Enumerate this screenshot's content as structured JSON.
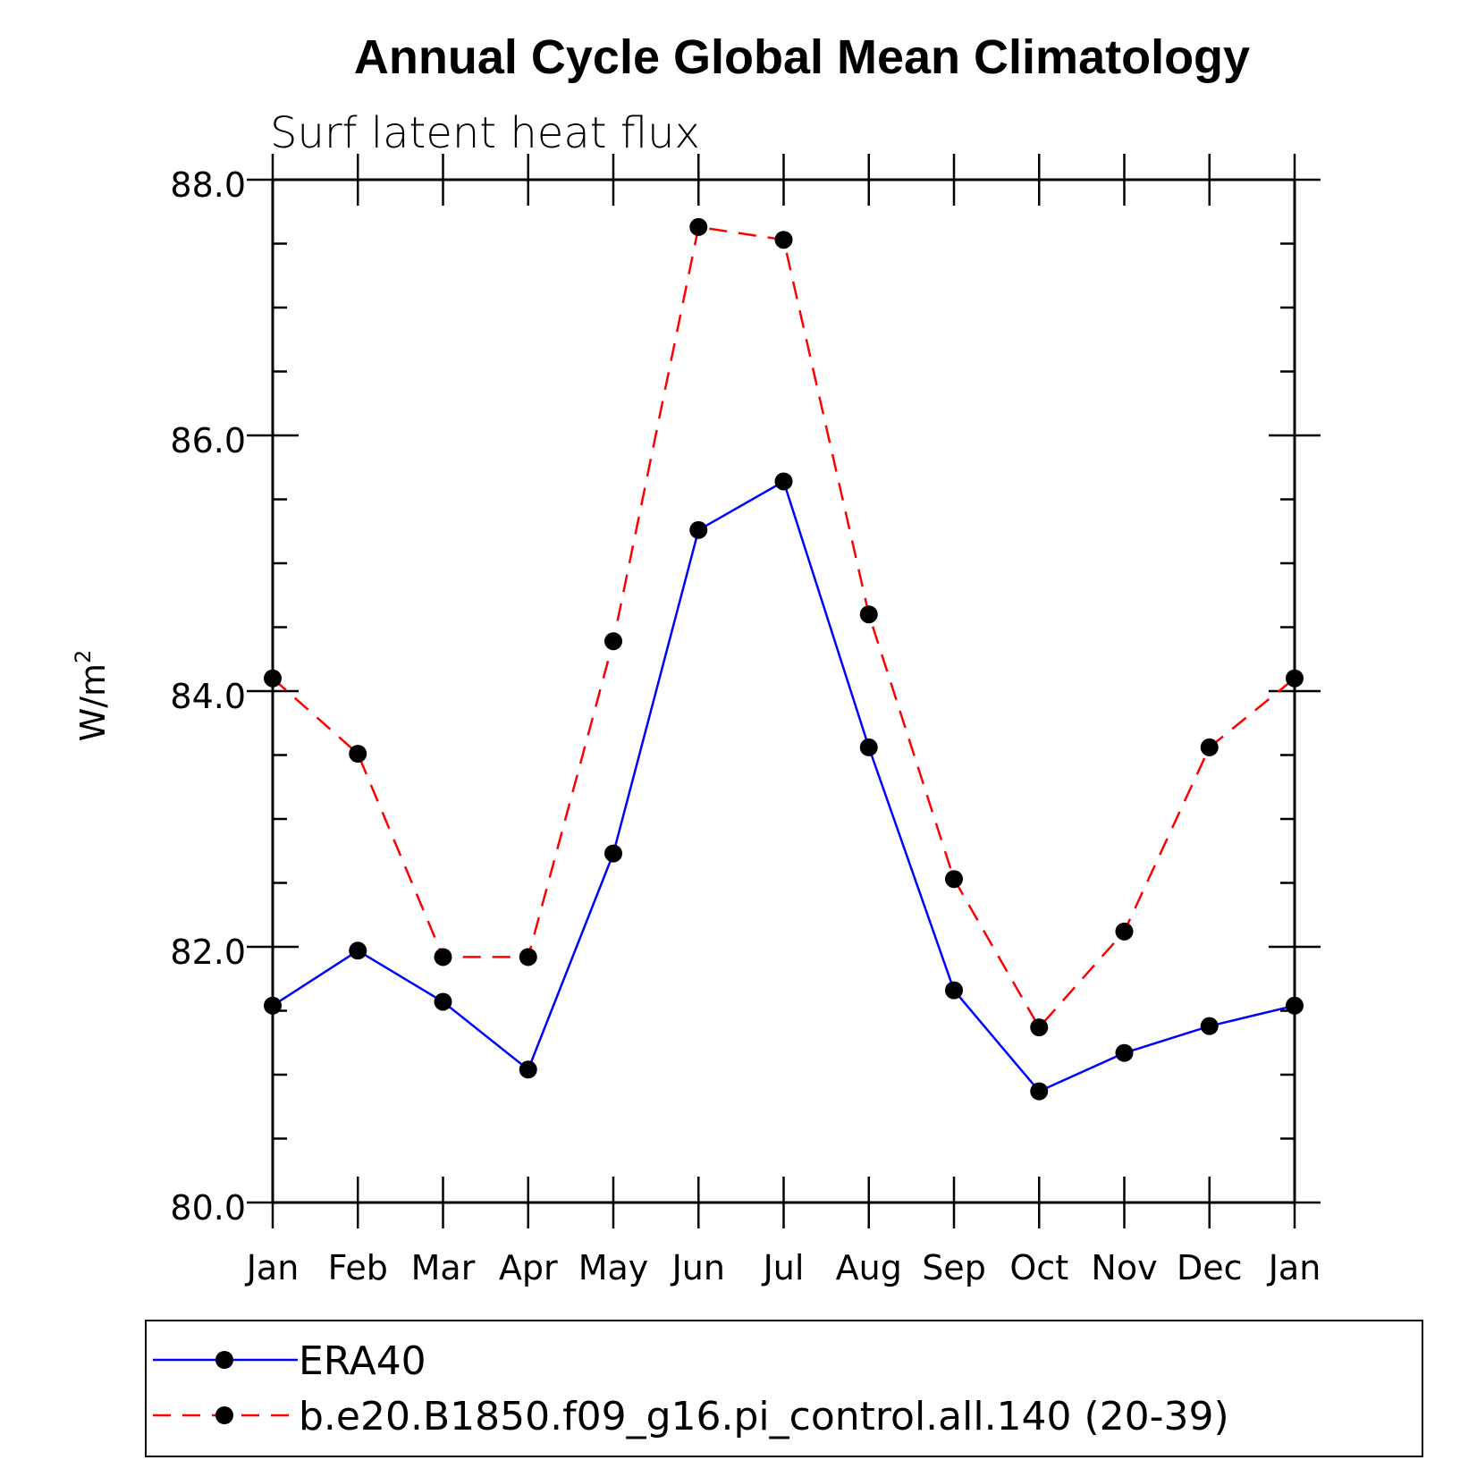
{
  "chart_data": {
    "type": "line",
    "title": "Annual Cycle Global Mean Climatology",
    "subtitle": "Surf latent heat flux",
    "ylabel": "W/m",
    "ylabel_superscript": "2",
    "xlabel": "",
    "categories": [
      "Jan",
      "Feb",
      "Mar",
      "Apr",
      "May",
      "Jun",
      "Jul",
      "Aug",
      "Sep",
      "Oct",
      "Nov",
      "Dec",
      "Jan"
    ],
    "ylim": [
      80.0,
      88.0
    ],
    "yticks": [
      "80.0",
      "82.0",
      "84.0",
      "86.0",
      "88.0"
    ],
    "ytick_values": [
      80,
      82,
      84,
      86,
      88
    ],
    "grid": false,
    "legend_position": "bottom",
    "series": [
      {
        "name": "ERA40",
        "color": "#0000ff",
        "linestyle": "solid",
        "marker": "filled-circle",
        "values": [
          81.54,
          81.97,
          81.57,
          81.04,
          82.73,
          85.26,
          85.64,
          83.56,
          81.66,
          80.87,
          81.17,
          81.38,
          81.54
        ]
      },
      {
        "name": "b.e20.B1850.f09_g16.pi_control.all.140 (20-39)",
        "color": "#ff0000",
        "linestyle": "dashed",
        "marker": "filled-circle",
        "values": [
          84.1,
          83.51,
          81.92,
          81.92,
          84.39,
          87.63,
          87.53,
          84.6,
          82.53,
          81.37,
          82.12,
          83.56,
          84.1
        ]
      }
    ]
  }
}
